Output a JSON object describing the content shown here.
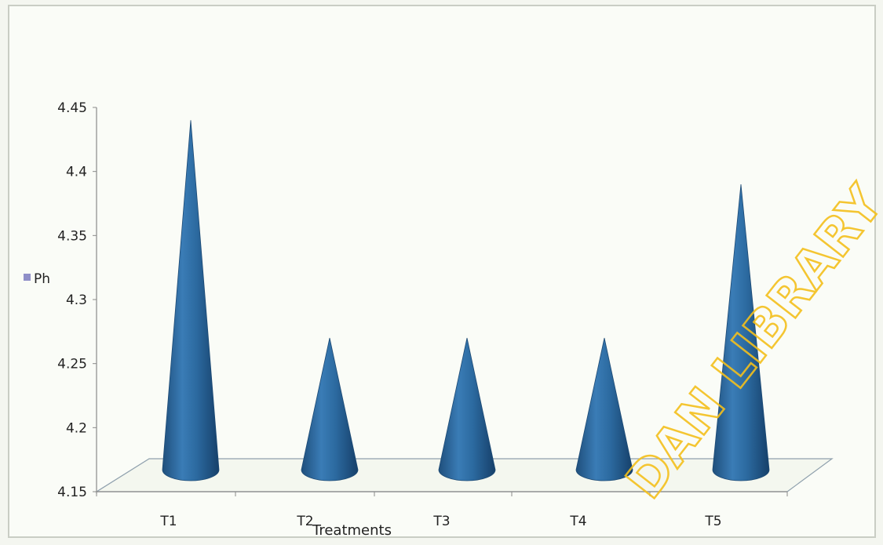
{
  "chart_data": {
    "type": "bar",
    "shape": "cone",
    "categories": [
      "T1",
      "T2",
      "T3",
      "T4",
      "T5"
    ],
    "series": [
      {
        "name": "Ph",
        "values": [
          4.44,
          4.27,
          4.27,
          4.27,
          4.39
        ]
      }
    ],
    "xlabel": "Treatments",
    "ylabel": "",
    "title": "",
    "ylim": [
      4.15,
      4.45
    ],
    "yticks": [
      "4.15",
      "4.2",
      "4.25",
      "4.3",
      "4.35",
      "4.4",
      "4.45"
    ],
    "grid": false,
    "legend_position": "left",
    "colors": {
      "series": "#2f6ea3",
      "legend_marker": "#8f8fc8"
    }
  },
  "watermark": "DAN LIBRARY"
}
